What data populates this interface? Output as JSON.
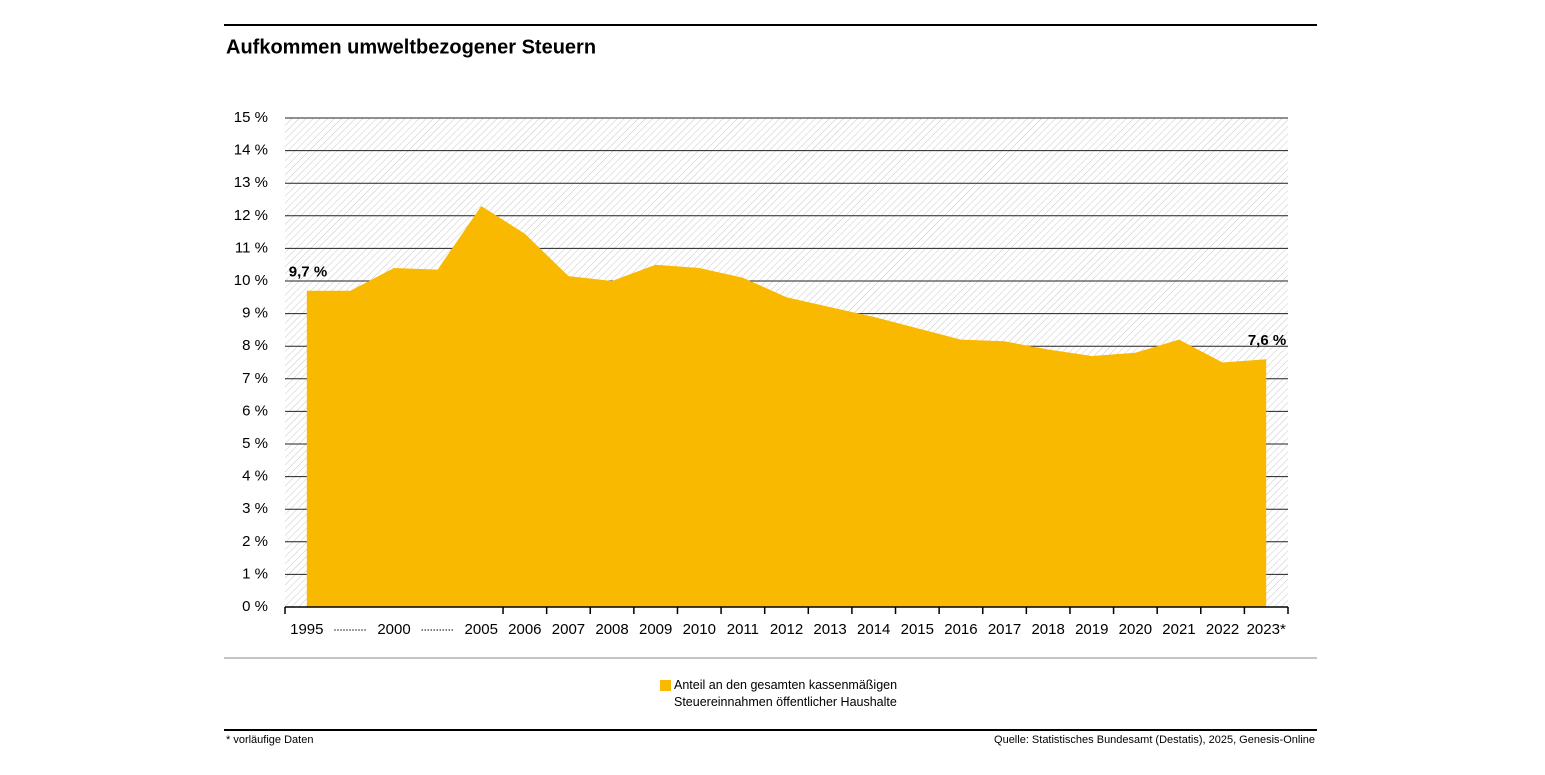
{
  "chart_data": {
    "type": "area",
    "title": "Aufkommen umweltbezogener Steuern",
    "categories": [
      "1995",
      null,
      "2000",
      null,
      "2005",
      "2006",
      "2007",
      "2008",
      "2009",
      "2010",
      "2011",
      "2012",
      "2013",
      "2014",
      "2015",
      "2016",
      "2017",
      "2018",
      "2019",
      "2020",
      "2021",
      "2022",
      "2023*"
    ],
    "series": [
      {
        "name": "Anteil an den gesamten kassenmäßigen Steuereinnahmen öffentlicher Haushalte",
        "color": "#f8b900",
        "values": [
          9.7,
          9.7,
          10.4,
          10.35,
          12.3,
          11.45,
          10.15,
          10.0,
          10.5,
          10.4,
          10.1,
          9.5,
          9.2,
          8.9,
          8.55,
          8.2,
          8.15,
          7.9,
          7.7,
          7.8,
          8.2,
          7.5,
          7.6
        ],
        "value_labels": [
          "9,7 %",
          null,
          null,
          null,
          null,
          null,
          null,
          null,
          null,
          null,
          null,
          null,
          null,
          null,
          null,
          null,
          null,
          null,
          null,
          null,
          null,
          null,
          "7,6 %"
        ]
      }
    ],
    "ylim": [
      0,
      15
    ],
    "yticks": [
      {
        "value": 0,
        "label": "0 %"
      },
      {
        "value": 1,
        "label": "1 %"
      },
      {
        "value": 2,
        "label": "2 %"
      },
      {
        "value": 3,
        "label": "3 %"
      },
      {
        "value": 4,
        "label": "4 %"
      },
      {
        "value": 5,
        "label": "5 %"
      },
      {
        "value": 6,
        "label": "6 %"
      },
      {
        "value": 7,
        "label": "7 %"
      },
      {
        "value": 8,
        "label": "8 %"
      },
      {
        "value": 9,
        "label": "9 %"
      },
      {
        "value": 10,
        "label": "10 %"
      },
      {
        "value": 11,
        "label": "11 %"
      },
      {
        "value": 12,
        "label": "12 %"
      },
      {
        "value": 13,
        "label": "13 %"
      },
      {
        "value": 14,
        "label": "14 %"
      },
      {
        "value": 15,
        "label": "15 %"
      }
    ],
    "grid": true,
    "footnote": "* vorläufige Daten",
    "source": "Quelle: Statistisches Bundesamt (Destatis), 2025, Genesis-Online"
  }
}
